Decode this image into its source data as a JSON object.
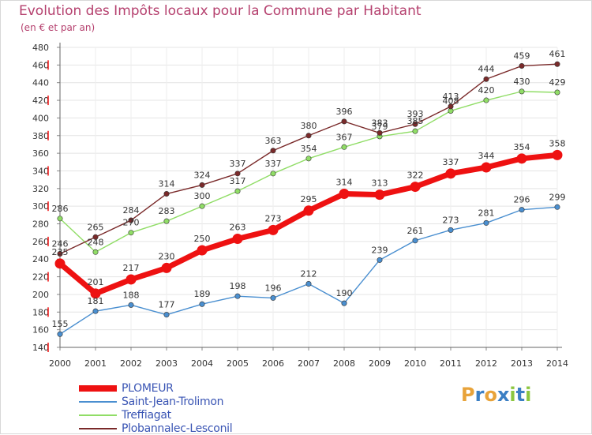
{
  "header": {
    "title": "Evolution des Impôts locaux pour la Commune par Habitant",
    "subtitle": "(en € et par an)"
  },
  "brand": {
    "text": "Proxiti",
    "letters": [
      "P",
      "r",
      "o",
      "x",
      "i",
      "t",
      "i"
    ],
    "colors": [
      "#e8a33a",
      "#3b7fc4",
      "#e8a33a",
      "#3b7fc4",
      "#8cc63f",
      "#3b7fc4",
      "#8cc63f"
    ]
  },
  "chart_data": {
    "type": "line",
    "title": "Evolution des Impôts locaux pour la Commune par Habitant",
    "subtitle": "(en € et par an)",
    "x": [
      "2000",
      "2001",
      "2002",
      "2003",
      "2004",
      "2005",
      "2006",
      "2007",
      "2008",
      "2009",
      "2010",
      "2011",
      "2012",
      "2013",
      "2014"
    ],
    "yticks": [
      140,
      160,
      180,
      200,
      220,
      240,
      260,
      280,
      300,
      320,
      340,
      360,
      380,
      400,
      420,
      440,
      460,
      480
    ],
    "ylim": [
      140,
      480
    ],
    "grid": true,
    "legend_position": "bottom-left",
    "series": [
      {
        "name": "PLOMEUR",
        "color": "#ee1111",
        "emphasis": true,
        "values": [
          235,
          201,
          217,
          230,
          250,
          263,
          273,
          295,
          314,
          313,
          322,
          337,
          344,
          354,
          358
        ]
      },
      {
        "name": "Saint-Jean-Trolimon",
        "color": "#4a8fd0",
        "emphasis": false,
        "values": [
          155,
          181,
          188,
          177,
          189,
          198,
          196,
          212,
          190,
          239,
          261,
          273,
          281,
          296,
          299
        ]
      },
      {
        "name": "Treffiagat",
        "color": "#90dd66",
        "emphasis": false,
        "values": [
          286,
          248,
          270,
          283,
          300,
          317,
          337,
          354,
          367,
          379,
          385,
          408,
          420,
          430,
          429
        ]
      },
      {
        "name": "Plobannalec-Lesconil",
        "color": "#7a2a2a",
        "emphasis": false,
        "values": [
          246,
          265,
          284,
          314,
          324,
          337,
          363,
          380,
          396,
          383,
          393,
          413,
          444,
          459,
          461
        ]
      }
    ]
  }
}
